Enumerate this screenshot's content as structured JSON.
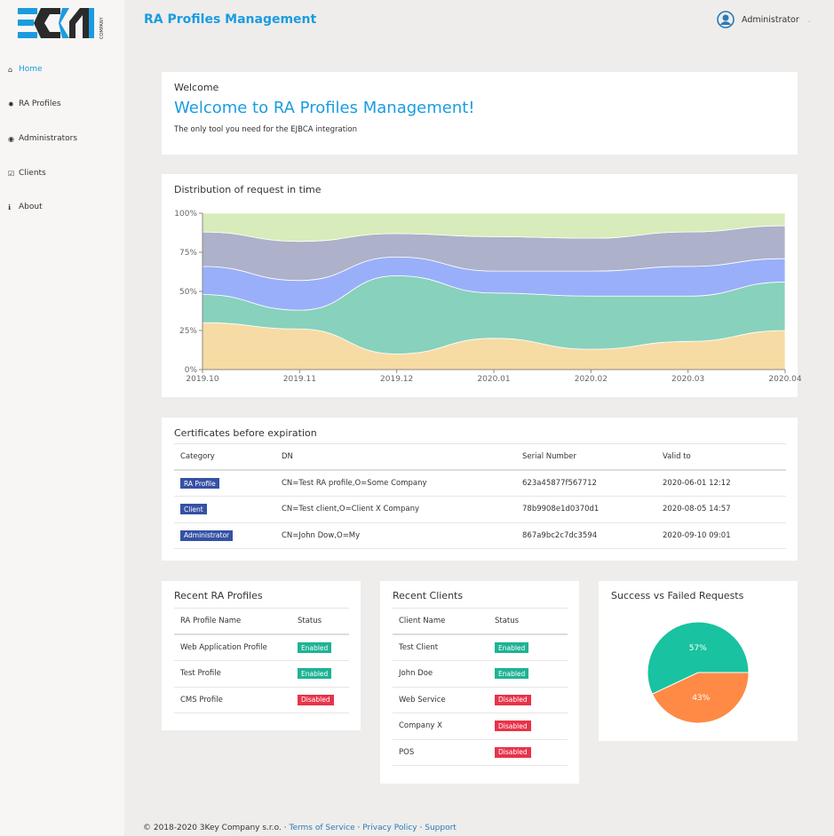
{
  "app": {
    "title": "RA Profiles Management",
    "logo_text": "3KEY COMPANY"
  },
  "header": {
    "user": "Administrator",
    "user_icon": "user-circle-icon",
    "dropdown_icon": "chevron-down-icon"
  },
  "sidebar": {
    "items": [
      {
        "label": "Home",
        "icon": "home-icon",
        "active": true
      },
      {
        "label": "RA Profiles",
        "icon": "gear-icon"
      },
      {
        "label": "Administrators",
        "icon": "user-circle-icon"
      },
      {
        "label": "Clients",
        "icon": "checkbox-icon"
      },
      {
        "label": "About",
        "icon": "info-icon"
      }
    ]
  },
  "welcome": {
    "label": "Welcome",
    "heading": "Welcome to RA Profiles Management!",
    "text": "The only tool you need for the EJBCA integration"
  },
  "chart_data": {
    "type": "area",
    "stacked": true,
    "normalized": true,
    "title": "Distribution of request in time",
    "categories": [
      "2019.10",
      "2019.11",
      "2019.12",
      "2020.01",
      "2020.02",
      "2020.03",
      "2020.04"
    ],
    "yticks": [
      "0%",
      "25%",
      "50%",
      "75%",
      "100%"
    ],
    "ylim": [
      0,
      100
    ],
    "grid": false,
    "colors": [
      "#f7dba4",
      "#88d1bc",
      "#9aaffa",
      "#adb1c9",
      "#d8ebba"
    ],
    "series": [
      {
        "values": [
          30,
          26,
          10,
          20,
          13,
          18,
          25
        ]
      },
      {
        "values": [
          18,
          12,
          50,
          29,
          34,
          29,
          31
        ]
      },
      {
        "values": [
          18,
          19,
          12,
          14,
          16,
          19,
          15
        ]
      },
      {
        "values": [
          22,
          25,
          15,
          22,
          21,
          22,
          21
        ]
      },
      {
        "values": [
          12,
          18,
          13,
          15,
          16,
          12,
          8
        ]
      }
    ]
  },
  "certificates": {
    "title": "Certificates before expiration",
    "columns": [
      "Category",
      "DN",
      "Serial Number",
      "Valid to"
    ],
    "rows": [
      {
        "category": "RA Profile",
        "dn": "CN=Test RA profile,O=Some Company",
        "serial": "623a45877f567712",
        "valid": "2020-06-01 12:12"
      },
      {
        "category": "Client",
        "dn": "CN=Test client,O=Client X Company",
        "serial": "78b9908e1d0370d1",
        "valid": "2020-08-05 14:57"
      },
      {
        "category": "Administrator",
        "dn": "CN=John Dow,O=My",
        "serial": "867a9bc2c7dc3594",
        "valid": "2020-09-10 09:01"
      }
    ]
  },
  "recent_profiles": {
    "title": "Recent RA Profiles",
    "columns": [
      "RA Profile Name",
      "Status"
    ],
    "rows": [
      {
        "name": "Web Application Profile",
        "status": "Enabled"
      },
      {
        "name": "Test Profile",
        "status": "Enabled"
      },
      {
        "name": "CMS Profile",
        "status": "Disabled"
      }
    ]
  },
  "recent_clients": {
    "title": "Recent Clients",
    "columns": [
      "Client Name",
      "Status"
    ],
    "rows": [
      {
        "name": "Test Client",
        "status": "Enabled"
      },
      {
        "name": "John Doe",
        "status": "Enabled"
      },
      {
        "name": "Web Service",
        "status": "Disabled"
      },
      {
        "name": "Company X",
        "status": "Disabled"
      },
      {
        "name": "POS",
        "status": "Disabled"
      }
    ]
  },
  "requests_pie": {
    "title": "Success vs Failed Requests",
    "slices": [
      {
        "label": "57%",
        "value": 57,
        "color": "#19c2a0"
      },
      {
        "label": "43%",
        "value": 43,
        "color": "#ff8a45"
      }
    ]
  },
  "status_colors": {
    "Enabled": "#1eb394",
    "Disabled": "#e8334a"
  },
  "badge_color": "#3551a3",
  "footer": {
    "copyright": "© 2018-2020  3Key Company s.r.o.",
    "sep": "·",
    "links": [
      "Terms of Service",
      "Privacy Policy",
      "Support"
    ]
  }
}
